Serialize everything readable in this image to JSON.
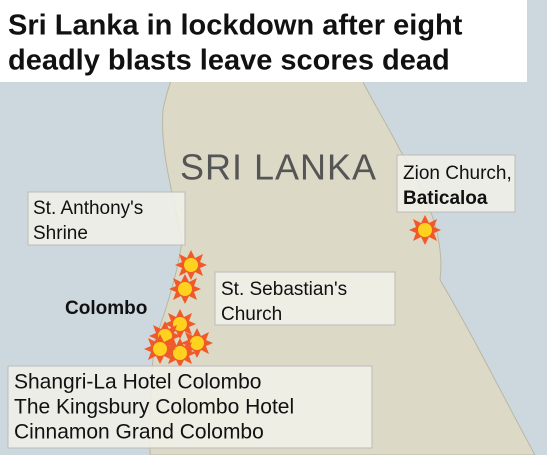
{
  "title": [
    "Sri Lanka in lockdown after eight",
    "deadly blasts leave scores dead"
  ],
  "country": "SRI LANKA",
  "city": "Colombo",
  "labels": [
    [
      "Zion Church,",
      "Baticaloa"
    ],
    [
      "St. Anthony's",
      "Shrine"
    ],
    [
      "St. Sebastian's",
      "Church"
    ],
    [
      "Shangri-La Hotel Colombo",
      "The Kingsbury Colombo Hotel",
      "Cinnamon Grand Colombo"
    ]
  ]
}
